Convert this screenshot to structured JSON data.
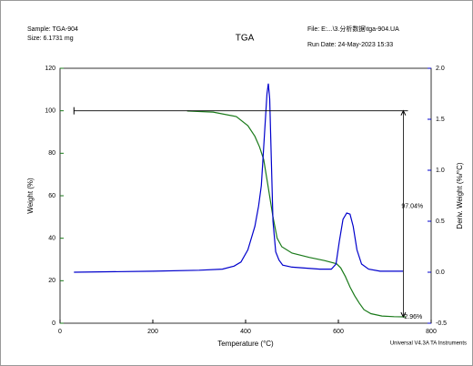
{
  "chart_data": {
    "type": "line",
    "title": "TGA",
    "sample": "Sample: TGA-904",
    "size": "Size: 6.1731 mg",
    "file": "File: E:...\\3.分析数据\\tga-904.UA",
    "run_date": "Run Date: 24-May-2023 15:33",
    "software": "Universal V4.3A TA Instruments",
    "x_label": "Temperature (°C)",
    "y_label": "Weight (%)",
    "y2_label": "Deriv. Weight (%/°C)",
    "xlim": [
      0,
      800
    ],
    "xticks": [
      0,
      200,
      400,
      600,
      800
    ],
    "ylim": [
      0,
      120
    ],
    "yticks": [
      0,
      20,
      40,
      60,
      80,
      100,
      120
    ],
    "y_color": "#1a7a1a",
    "y2lim": [
      -0.5,
      2.0
    ],
    "y2ticks": [
      {
        "value": -0.5,
        "label": "-0.5"
      },
      {
        "value": 0,
        "label": "0.0"
      },
      {
        "value": 0.5,
        "label": "0.5"
      },
      {
        "value": 1.0,
        "label": "1.0"
      },
      {
        "value": 1.5,
        "label": "1.5"
      },
      {
        "value": 2.0,
        "label": "2.0"
      }
    ],
    "y2_color": "#0000cc",
    "series": [
      {
        "name": "Weight",
        "color": "#1a7a1a",
        "x": [
          274,
          330,
          380,
          405,
          420,
          430,
          439,
          448,
          459,
          468,
          478,
          500,
          537,
          570,
          596,
          605,
          615,
          625,
          635,
          645,
          655,
          670,
          694,
          720,
          745
        ],
        "values": [
          99.9,
          99.4,
          97.3,
          93,
          88,
          83,
          77,
          65,
          50,
          40,
          36,
          33,
          31,
          29.5,
          28,
          26,
          22,
          17,
          13,
          9.5,
          6.4,
          4.5,
          3.4,
          3.1,
          3.0
        ]
      },
      {
        "name": "Deriv. Weight",
        "color": "#0000cc",
        "axis": "y2",
        "x": [
          30,
          200,
          300,
          350,
          375,
          390,
          405,
          420,
          428,
          434,
          440,
          446,
          449,
          452,
          455,
          459,
          465,
          472,
          480,
          500,
          530,
          560,
          585,
          595,
          602,
          610,
          618,
          625,
          632,
          640,
          650,
          665,
          690,
          720,
          740
        ],
        "values": [
          0.0,
          0.01,
          0.02,
          0.03,
          0.06,
          0.1,
          0.22,
          0.45,
          0.65,
          0.85,
          1.3,
          1.75,
          1.85,
          1.7,
          1.2,
          0.5,
          0.2,
          0.12,
          0.07,
          0.05,
          0.04,
          0.03,
          0.03,
          0.08,
          0.3,
          0.52,
          0.58,
          0.57,
          0.45,
          0.22,
          0.08,
          0.03,
          0.01,
          0.01,
          0.01
        ]
      }
    ],
    "step": {
      "label": "97.04%",
      "x_start": 30,
      "x_end": 750,
      "x": 740,
      "from": 100,
      "to": 2.96,
      "label_y": 55
    },
    "residue_label": "2.96%"
  }
}
